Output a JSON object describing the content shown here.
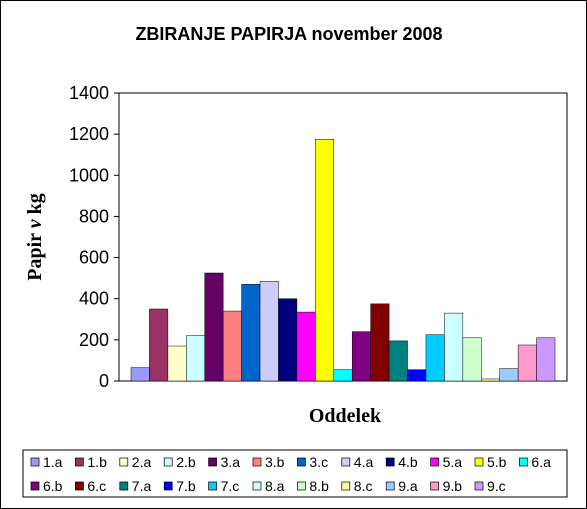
{
  "chart_data": {
    "type": "bar",
    "title": "ZBIRANJE PAPIRJA november 2008",
    "xlabel": "Oddelek",
    "ylabel_parts": [
      "Papir ",
      "v",
      " kg"
    ],
    "ylim": [
      0,
      1400
    ],
    "yticks": [
      "0",
      "200",
      "400",
      "600",
      "800",
      "1000",
      "1200",
      "1400"
    ],
    "grid": "none",
    "legend_position": "bottom",
    "series": [
      {
        "name": "1.a",
        "value": 65,
        "color": "#9999ff"
      },
      {
        "name": "1.b",
        "value": 350,
        "color": "#993366"
      },
      {
        "name": "2.a",
        "value": 170,
        "color": "#ffffcc"
      },
      {
        "name": "2.b",
        "value": 220,
        "color": "#ccffff"
      },
      {
        "name": "3.a",
        "value": 525,
        "color": "#660066"
      },
      {
        "name": "3.b",
        "value": 340,
        "color": "#ff8080"
      },
      {
        "name": "3.c",
        "value": 470,
        "color": "#0066cc"
      },
      {
        "name": "4.a",
        "value": 485,
        "color": "#ccccff"
      },
      {
        "name": "4.b",
        "value": 400,
        "color": "#000080"
      },
      {
        "name": "5.a",
        "value": 335,
        "color": "#ff00ff"
      },
      {
        "name": "5.b",
        "value": 1175,
        "color": "#ffff00"
      },
      {
        "name": "6.a",
        "value": 55,
        "color": "#00ffff"
      },
      {
        "name": "6.b",
        "value": 240,
        "color": "#800080"
      },
      {
        "name": "6.c",
        "value": 375,
        "color": "#800000"
      },
      {
        "name": "7.a",
        "value": 195,
        "color": "#008080"
      },
      {
        "name": "7.b",
        "value": 55,
        "color": "#0000ff"
      },
      {
        "name": "7.c",
        "value": 225,
        "color": "#00ccff"
      },
      {
        "name": "8.a",
        "value": 330,
        "color": "#ccffff"
      },
      {
        "name": "8.b",
        "value": 210,
        "color": "#ccffcc"
      },
      {
        "name": "8.c",
        "value": 10,
        "color": "#ffff99"
      },
      {
        "name": "9.a",
        "value": 60,
        "color": "#99ccff"
      },
      {
        "name": "9.b",
        "value": 175,
        "color": "#ff99cc"
      },
      {
        "name": "9.c",
        "value": 210,
        "color": "#cc99ff"
      }
    ]
  }
}
